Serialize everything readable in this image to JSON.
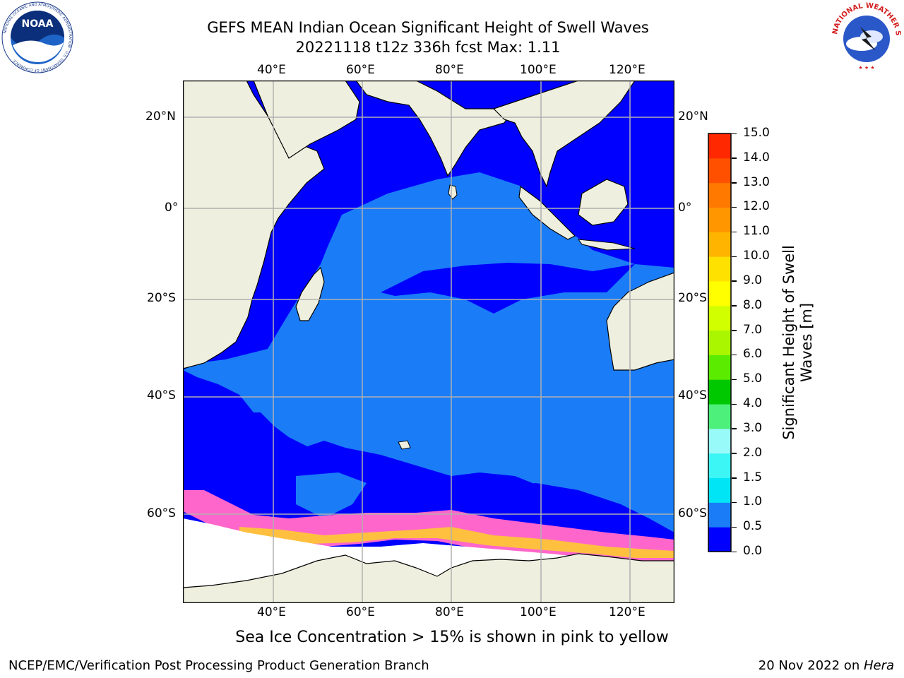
{
  "header": {
    "title": "GEFS MEAN Indian Ocean Significant Height of Swell Waves",
    "subtitle": "20221118 t12z 336h fcst   Max: 1.11"
  },
  "logos": {
    "left": {
      "text": "NOAA",
      "ring": "NATIONAL OCEANIC AND ATMOSPHERIC ADMINISTRATION · U.S. DEPARTMENT OF COMMERCE"
    },
    "right": {
      "ring": "NATIONAL WEATHER SERVICE"
    }
  },
  "map": {
    "lon_labels": [
      "40°E",
      "60°E",
      "80°E",
      "100°E",
      "120°E"
    ],
    "lat_labels": [
      "20°N",
      "0°",
      "20°S",
      "40°S",
      "60°S"
    ],
    "lon_range": [
      20,
      130
    ],
    "lat_range": [
      -75,
      28
    ],
    "colors": {
      "ocean_low": "#0000ff",
      "ocean_mid": "#1a7df7",
      "land": "#efefdf",
      "ice": "#ffffff",
      "grid": "#b0b0b0"
    }
  },
  "colorbar": {
    "title_line1": "Significant Height of Swell",
    "title_line2": "Waves [m]",
    "ticks": [
      "0.0",
      "0.5",
      "1.0",
      "1.5",
      "2.0",
      "3.0",
      "4.0",
      "5.0",
      "6.0",
      "7.0",
      "8.0",
      "9.0",
      "10.0",
      "11.0",
      "12.0",
      "13.0",
      "14.0",
      "15.0"
    ],
    "colors": [
      "#0000ff",
      "#1a7df7",
      "#00e5f5",
      "#3cf5f5",
      "#99fafa",
      "#4df07a",
      "#00c800",
      "#5aeb00",
      "#aaf500",
      "#d2ff00",
      "#ffff00",
      "#ffe100",
      "#ffb400",
      "#ff9600",
      "#ff7800",
      "#ff5000",
      "#ff2800",
      "#ff0000"
    ]
  },
  "caption": "Sea Ice Concentration > 15% is shown in pink to yellow",
  "footer": {
    "left": "NCEP/EMC/Verification Post Processing Product Generation Branch",
    "date": "20 Nov 2022 on ",
    "machine": "Hera"
  }
}
